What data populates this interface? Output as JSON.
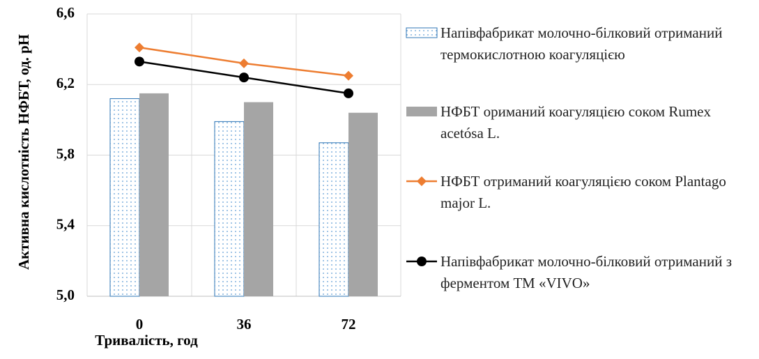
{
  "chart_data": {
    "type": "bar-line",
    "y_label": "Активна кислотність  НФБТ, од. рН",
    "x_label": "Тривалість, год",
    "categories": [
      "0",
      "36",
      "72"
    ],
    "ylim": [
      5.0,
      6.6
    ],
    "yticks": [
      {
        "value": 5.0,
        "label": "5,0"
      },
      {
        "value": 5.4,
        "label": "5,4"
      },
      {
        "value": 5.8,
        "label": "5,8"
      },
      {
        "value": 6.2,
        "label": "6,2"
      },
      {
        "value": 6.6,
        "label": "6,6"
      }
    ],
    "grid": true,
    "series": [
      {
        "name": "Напівфабрикат молочно-білковий отриманий термокислотною коагуляцією",
        "kind": "bar",
        "color": "#2e75b6",
        "values": [
          6.12,
          5.99,
          5.87
        ]
      },
      {
        "name": "НФБТ оримaний коагуляцією соком Rumex acetósa L.",
        "kind": "bar",
        "color": "#a5a5a5",
        "values": [
          6.15,
          6.1,
          6.04
        ]
      },
      {
        "name": "НФБТ отриманий коагуляцією соком Plantago major L.",
        "kind": "line",
        "color": "#ed7d31",
        "values": [
          6.41,
          6.32,
          6.25
        ]
      },
      {
        "name": "Напівфабрикат молочно-білковий отриманий з ферментом ТМ «VIVO»",
        "kind": "line",
        "color": "#000000",
        "values": [
          6.33,
          6.24,
          6.15
        ]
      }
    ]
  }
}
